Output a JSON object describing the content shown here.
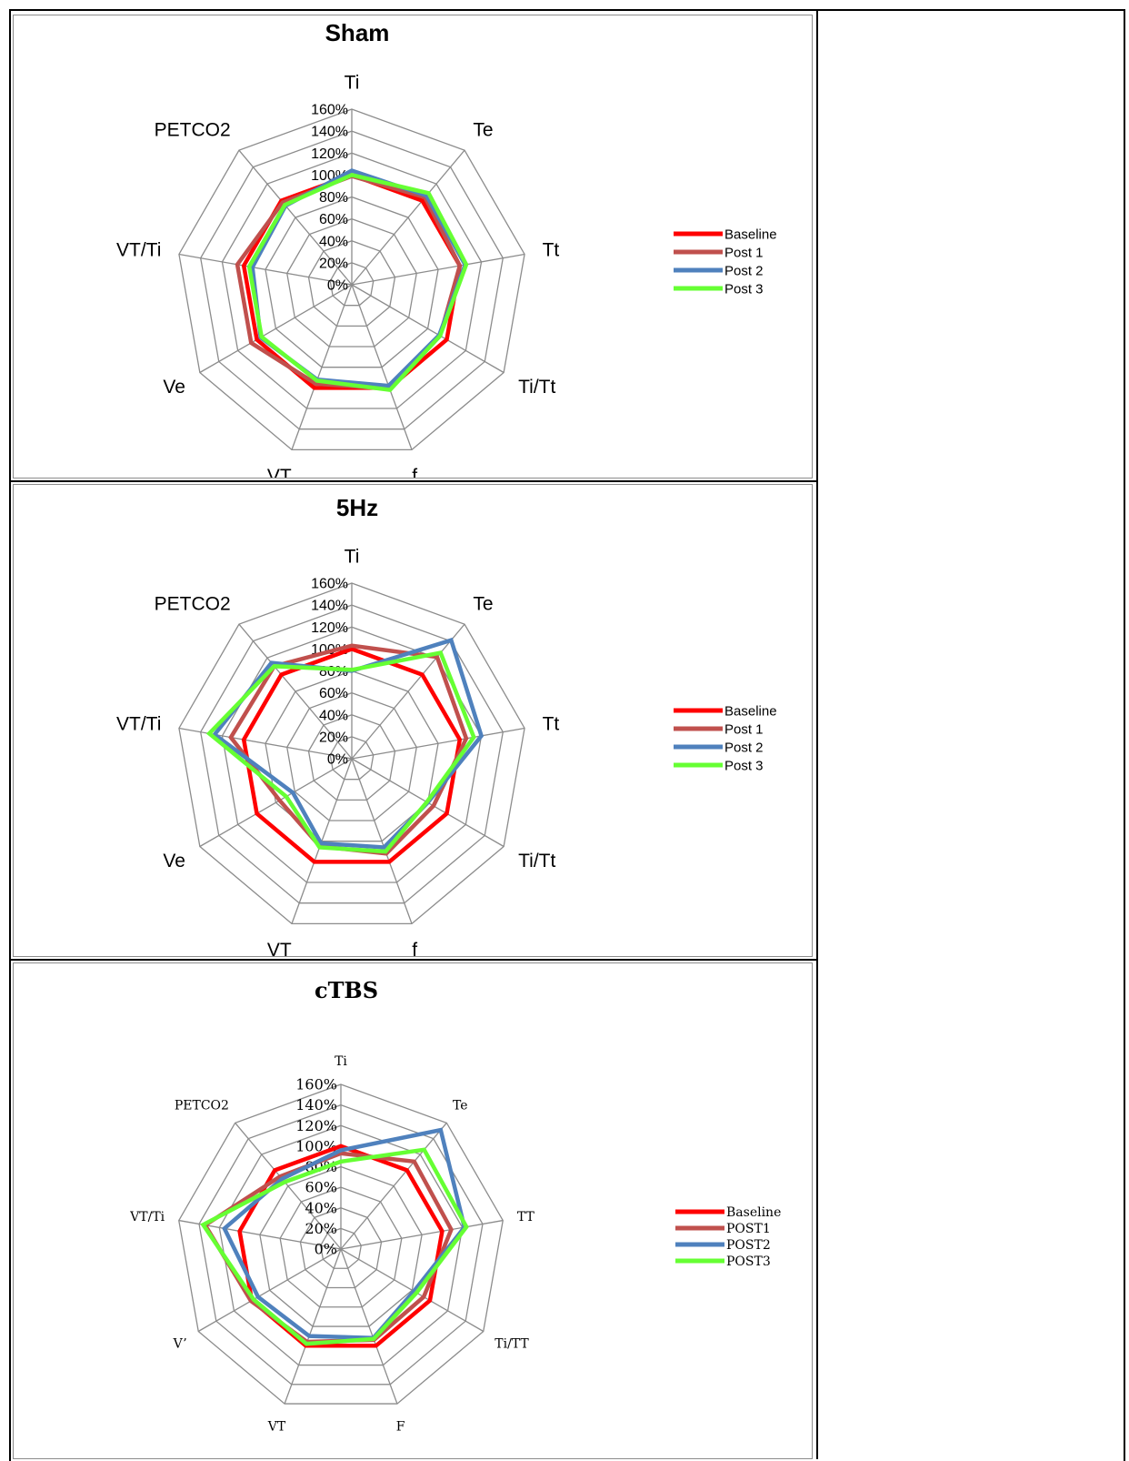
{
  "chart_data": [
    {
      "type": "radar",
      "title": "Sham",
      "axes": [
        "Ti",
        "Te",
        "Tt",
        "Ti/Tt",
        "f",
        "VT",
        "Ve",
        "VT/Ti",
        "PETCO2"
      ],
      "tick_labels": [
        "0%",
        "20%",
        "40%",
        "60%",
        "80%",
        "100%",
        "120%",
        "140%",
        "160%"
      ],
      "rlim": [
        0,
        160
      ],
      "legend_position": "right",
      "series": [
        {
          "name": "Baseline",
          "color": "#ff0000",
          "values": [
            100,
            100,
            100,
            100,
            100,
            100,
            100,
            100,
            100
          ]
        },
        {
          "name": "Post 1",
          "color": "#c0504d",
          "values": [
            99,
            104,
            100,
            93,
            101,
            96,
            106,
            106,
            98
          ]
        },
        {
          "name": "Post 2",
          "color": "#4f81bd",
          "values": [
            104,
            106,
            105,
            92,
            98,
            92,
            96,
            92,
            94
          ]
        },
        {
          "name": "Post 3",
          "color": "#66ff33",
          "values": [
            100,
            109,
            106,
            93,
            102,
            93,
            95,
            95,
            95
          ]
        }
      ]
    },
    {
      "type": "radar",
      "title": "5Hz",
      "axes": [
        "Ti",
        "Te",
        "Tt",
        "Ti/Tt",
        "f",
        "VT",
        "Ve",
        "VT/Ti",
        "PETCO2"
      ],
      "tick_labels": [
        "0%",
        "20%",
        "40%",
        "60%",
        "80%",
        "100%",
        "120%",
        "140%",
        "160%"
      ],
      "rlim": [
        0,
        160
      ],
      "legend_position": "right",
      "series": [
        {
          "name": "Baseline",
          "color": "#ff0000",
          "values": [
            100,
            100,
            100,
            100,
            100,
            100,
            100,
            100,
            100
          ]
        },
        {
          "name": "Post 1",
          "color": "#c0504d",
          "values": [
            103,
            121,
            106,
            86,
            92,
            85,
            76,
            112,
            110
          ]
        },
        {
          "name": "Post 2",
          "color": "#4f81bd",
          "values": [
            80,
            141,
            120,
            80,
            86,
            82,
            62,
            127,
            114
          ]
        },
        {
          "name": "Post 3",
          "color": "#66ff33",
          "values": [
            81,
            126,
            113,
            79,
            90,
            86,
            69,
            132,
            110
          ]
        }
      ]
    },
    {
      "type": "radar",
      "title": "cTBS",
      "axes": [
        "Ti",
        "Te",
        "TT",
        "Ti/TT",
        "F",
        "VT",
        "V’",
        "VT/Ti",
        "PETCO2"
      ],
      "tick_labels": [
        "0%",
        "20%",
        "40%",
        "60%",
        "80%",
        "100%",
        "120%",
        "140%",
        "160%"
      ],
      "rlim": [
        0,
        160
      ],
      "legend_position": "right",
      "series": [
        {
          "name": "Baseline",
          "color": "#ff0000",
          "values": [
            100,
            100,
            100,
            100,
            100,
            100,
            100,
            100,
            100
          ]
        },
        {
          "name": "POST1",
          "color": "#c0504d",
          "values": [
            93,
            111,
            109,
            93,
            94,
            96,
            101,
            134,
            92
          ]
        },
        {
          "name": "POST2",
          "color": "#4f81bd",
          "values": [
            96,
            151,
            122,
            82,
            92,
            90,
            93,
            115,
            89
          ]
        },
        {
          "name": "POST3",
          "color": "#66ff33",
          "values": [
            85,
            126,
            124,
            85,
            93,
            98,
            98,
            136,
            85
          ]
        }
      ]
    }
  ]
}
